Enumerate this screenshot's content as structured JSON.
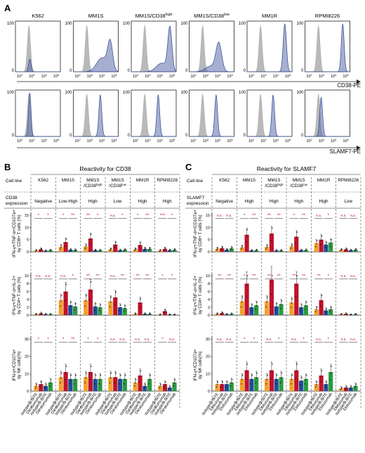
{
  "panel_A": {
    "letter": "A",
    "cell_lines": [
      "K562",
      "MM1S",
      "MM1S/CD38^high",
      "MM1S/CD38^low",
      "MM1R",
      "RPMI8226"
    ],
    "y_tick": "100",
    "y_tick_zero": "0",
    "x_ticks": [
      "10^2",
      "10^3",
      "10^4",
      "10^5"
    ],
    "row_labels": [
      "CD38-PE",
      "SLAMF7-PE"
    ],
    "histograms": {
      "cd38": [
        {
          "iso": 0.3,
          "stain": 0.32,
          "stain_width": 0.06,
          "stain_height": 0.25,
          "tail": 0
        },
        {
          "iso": 0.3,
          "stain": 0.82,
          "stain_width": 0.12,
          "stain_height": 0.55,
          "tail": 0.5
        },
        {
          "iso": 0.3,
          "stain": 0.86,
          "stain_width": 0.1,
          "stain_height": 0.85,
          "tail": 0.2
        },
        {
          "iso": 0.3,
          "stain": 0.66,
          "stain_width": 0.14,
          "stain_height": 0.55,
          "tail": 0.2
        },
        {
          "iso": 0.3,
          "stain": 0.84,
          "stain_width": 0.08,
          "stain_height": 0.95,
          "tail": 0
        },
        {
          "iso": 0.3,
          "stain": 0.84,
          "stain_width": 0.07,
          "stain_height": 0.95,
          "tail": 0
        }
      ],
      "slamf7": [
        {
          "iso": 0.3,
          "stain": 0.32,
          "stain_width": 0.06,
          "stain_height": 0.95,
          "tail": 0
        },
        {
          "iso": 0.3,
          "stain": 0.6,
          "stain_width": 0.07,
          "stain_height": 0.9,
          "tail": 0
        },
        {
          "iso": 0.3,
          "stain": 0.6,
          "stain_width": 0.07,
          "stain_height": 0.9,
          "tail": 0
        },
        {
          "iso": 0.3,
          "stain": 0.6,
          "stain_width": 0.07,
          "stain_height": 0.9,
          "tail": 0
        },
        {
          "iso": 0.3,
          "stain": 0.58,
          "stain_width": 0.07,
          "stain_height": 0.9,
          "tail": 0
        },
        {
          "iso": 0.3,
          "stain": 0.36,
          "stain_width": 0.07,
          "stain_height": 0.85,
          "tail": 0
        }
      ]
    }
  },
  "panel_B": {
    "letter": "B",
    "title": "Reactivity for CD38",
    "header_cell_line": "Cell line",
    "header_expression": "CD38 expression",
    "cell_lines": [
      "K562",
      "MM1S",
      "MM1S /CD38^high",
      "MM1S /CD38^low",
      "MM1R",
      "RPMI8226"
    ],
    "expression": [
      "Negative",
      "Low-High",
      "High",
      "Low",
      "High",
      "High"
    ],
    "y_labels": [
      "IFN-γ+/TNF-α+/CD107a+ by CD8+ T cells (%)",
      "IFN-γ+/TNF-α+/IL-2+ by CD4+ T cells (%)",
      "IFN-γ+/CD107a+ by NK cells(%)"
    ],
    "y_ticks": [
      [
        "0",
        "5",
        "10",
        "15"
      ],
      [
        "0",
        "2",
        "4",
        "6",
        "8",
        "10"
      ],
      [
        "0",
        "10",
        "20",
        "30"
      ]
    ],
    "significance": [
      [
        "*",
        "*",
        "*",
        "**",
        "**",
        "*",
        "n.s.",
        "*",
        "*",
        "**",
        "***",
        "*"
      ],
      [
        "n.s.",
        "n.s.",
        "n.s.",
        "*",
        "**",
        "**",
        "n.s.",
        "**",
        "**",
        "**",
        "*",
        "*"
      ],
      [
        "*",
        "*",
        "*",
        "**",
        "*",
        "*",
        "n.s.",
        "n.s.",
        "n.s.",
        "n.s.",
        "*",
        "n.s."
      ]
    ],
    "x_categories": [
      "Isotype/B-BiTE",
      "Daratumumab",
      "Isotype/B-BiTE",
      "Daratumumab"
    ]
  },
  "panel_C": {
    "letter": "C",
    "title": "Reactivity for SLAMF7",
    "header_cell_line": "Cell line",
    "header_expression": "SLAMF7 expression",
    "cell_lines": [
      "K562",
      "MM1S",
      "MM1S /CD38^high",
      "MM1S /CD38^low",
      "MM1R",
      "RPMI8226"
    ],
    "expression": [
      "Negative",
      "High",
      "High",
      "High",
      "High",
      "Low"
    ],
    "y_labels": [
      "IFN-γ+/TNF-α+/CD107a+ by CD8+ T cells (%)",
      "IFN-γ+/TNF-α+/IL-2+ by CD4+ T cells (%)",
      "IFN-γ+/CD107a+ by NK cells(%)"
    ],
    "y_ticks": [
      [
        "0",
        "5",
        "10",
        "15"
      ],
      [
        "0",
        "2",
        "4",
        "6",
        "8",
        "10"
      ],
      [
        "0",
        "10",
        "20",
        "30"
      ]
    ],
    "significance": [
      [
        "n.s.",
        "n.s.",
        "*",
        "**",
        "**",
        "**",
        "*",
        "**",
        "n.s.",
        "*",
        "n.s.",
        "n.s."
      ],
      [
        "**",
        "**",
        "*",
        "**",
        "**",
        "**",
        "**",
        "**",
        "**",
        "*",
        "n.s.",
        "n.s."
      ],
      [
        "n.s.",
        "n.s.",
        "*",
        "*",
        "n.s.",
        "*",
        "n.s.",
        "*",
        "n.s.",
        "*",
        "n.s.",
        "n.s."
      ]
    ],
    "x_categories": [
      "Isotype/B-BiTE",
      "Elotuzumab",
      "Isotype/B-BiTE",
      "Elotuzumab"
    ]
  },
  "chart_data": [
    {
      "type": "bar",
      "title": "Reactivity for CD38 — CD8+ T cells",
      "ylabel": "IFN-γ+/TNF-α+/CD107a+ by CD8+ T cells (%)",
      "categories": [
        "K562",
        "MM1S",
        "MM1S/CD38high",
        "MM1S/CD38low",
        "MM1R",
        "RPMI8226"
      ],
      "ylim": [
        0,
        15
      ],
      "series": [
        {
          "name": "Isotype/B-BiTE",
          "color": "#f2a12d",
          "values": [
            0.5,
            2.0,
            2.2,
            1.0,
            1.0,
            0.5
          ]
        },
        {
          "name": "Daratumumab",
          "color": "#c0132b",
          "values": [
            1.0,
            4.0,
            5.5,
            3.0,
            2.8,
            1.2
          ]
        },
        {
          "name": "Isotype/B-BiTE",
          "color": "#1f4f9a",
          "values": [
            0.4,
            0.8,
            0.6,
            0.6,
            1.2,
            0.6
          ]
        },
        {
          "name": "Daratumumab",
          "color": "#2b9a3f",
          "values": [
            0.6,
            0.7,
            0.6,
            0.8,
            1.2,
            0.8
          ]
        }
      ]
    },
    {
      "type": "bar",
      "title": "Reactivity for CD38 — CD4+ T cells",
      "ylabel": "IFN-γ+/TNF-α+/IL-2+ by CD4+ T cells (%)",
      "categories": [
        "K562",
        "MM1S",
        "MM1S/CD38high",
        "MM1S/CD38low",
        "MM1R",
        "RPMI8226"
      ],
      "ylim": [
        0,
        10
      ],
      "series": [
        {
          "name": "Isotype/B-BiTE",
          "color": "#f2a12d",
          "values": [
            0.2,
            3.8,
            3.8,
            3.5,
            0.3,
            0.1
          ]
        },
        {
          "name": "Daratumumab",
          "color": "#c0132b",
          "values": [
            0.4,
            6.0,
            6.5,
            4.5,
            3.2,
            1.0
          ]
        },
        {
          "name": "Isotype/B-BiTE",
          "color": "#1f4f9a",
          "values": [
            0.2,
            2.5,
            2.2,
            2.0,
            0.3,
            0.1
          ]
        },
        {
          "name": "Daratumumab",
          "color": "#2b9a3f",
          "values": [
            0.2,
            2.2,
            2.0,
            1.8,
            0.3,
            0.1
          ]
        }
      ]
    },
    {
      "type": "bar",
      "title": "Reactivity for CD38 — NK cells",
      "ylabel": "IFN-γ+/CD107a+ by NK cells(%)",
      "categories": [
        "K562",
        "MM1S",
        "MM1S/CD38high",
        "MM1S/CD38low",
        "MM1R",
        "RPMI8226"
      ],
      "ylim": [
        0,
        30
      ],
      "series": [
        {
          "name": "Isotype/B-BiTE",
          "color": "#f2a12d",
          "values": [
            3,
            8,
            8,
            8,
            5,
            3
          ]
        },
        {
          "name": "Daratumumab",
          "color": "#c0132b",
          "values": [
            4,
            11,
            11,
            8,
            9,
            4
          ]
        },
        {
          "name": "Isotype/B-BiTE",
          "color": "#1f4f9a",
          "values": [
            3,
            7,
            7,
            7,
            3,
            2
          ]
        },
        {
          "name": "Daratumumab",
          "color": "#2b9a3f",
          "values": [
            5,
            7,
            7,
            7,
            7,
            5
          ]
        }
      ]
    },
    {
      "type": "bar",
      "title": "Reactivity for SLAMF7 — CD8+ T cells",
      "ylabel": "IFN-γ+/TNF-α+/CD107a+ by CD8+ T cells (%)",
      "categories": [
        "K562",
        "MM1S",
        "MM1S/CD38high",
        "MM1S/CD38low",
        "MM1R",
        "RPMI8226"
      ],
      "ylim": [
        0,
        15
      ],
      "series": [
        {
          "name": "Isotype/B-BiTE",
          "color": "#f2a12d",
          "values": [
            1.2,
            1.8,
            2.0,
            2.2,
            3.5,
            0.8
          ]
        },
        {
          "name": "Elotuzumab",
          "color": "#c0132b",
          "values": [
            1.5,
            7.0,
            7.5,
            6.2,
            5.0,
            1.0
          ]
        },
        {
          "name": "Isotype/B-BiTE",
          "color": "#1f4f9a",
          "values": [
            0.8,
            0.5,
            0.5,
            0.6,
            3.0,
            0.6
          ]
        },
        {
          "name": "Elotuzumab",
          "color": "#2b9a3f",
          "values": [
            1.4,
            0.6,
            0.5,
            0.7,
            3.8,
            0.8
          ]
        }
      ]
    },
    {
      "type": "bar",
      "title": "Reactivity for SLAMF7 — CD4+ T cells",
      "ylabel": "IFN-γ+/TNF-α+/IL-2+ by CD4+ T cells (%)",
      "categories": [
        "K562",
        "MM1S",
        "MM1S/CD38high",
        "MM1S/CD38low",
        "MM1R",
        "RPMI8226"
      ],
      "ylim": [
        0,
        10
      ],
      "series": [
        {
          "name": "Isotype/B-BiTE",
          "color": "#f2a12d",
          "values": [
            0.3,
            3.5,
            3.5,
            3.2,
            1.5,
            0.2
          ]
        },
        {
          "name": "Elotuzumab",
          "color": "#c0132b",
          "values": [
            0.5,
            8.0,
            9.0,
            8.0,
            3.8,
            0.3
          ]
        },
        {
          "name": "Isotype/B-BiTE",
          "color": "#1f4f9a",
          "values": [
            0.2,
            2.0,
            2.2,
            2.0,
            1.2,
            0.1
          ]
        },
        {
          "name": "Elotuzumab",
          "color": "#2b9a3f",
          "values": [
            0.3,
            2.5,
            2.8,
            2.5,
            1.5,
            0.2
          ]
        }
      ]
    },
    {
      "type": "bar",
      "title": "Reactivity for SLAMF7 — NK cells",
      "ylabel": "IFN-γ+/CD107a+ by NK cells(%)",
      "categories": [
        "K562",
        "MM1S",
        "MM1S/CD38high",
        "MM1S/CD38low",
        "MM1R",
        "RPMI8226"
      ],
      "ylim": [
        0,
        30
      ],
      "series": [
        {
          "name": "Isotype/B-BiTE",
          "color": "#f2a12d",
          "values": [
            4,
            7,
            7,
            7,
            4,
            1.5
          ]
        },
        {
          "name": "Elotuzumab",
          "color": "#c0132b",
          "values": [
            4,
            12,
            12,
            12,
            9,
            2
          ]
        },
        {
          "name": "Isotype/B-BiTE",
          "color": "#1f4f9a",
          "values": [
            4,
            7,
            7,
            6,
            4,
            2
          ]
        },
        {
          "name": "Elotuzumab",
          "color": "#2b9a3f",
          "values": [
            5,
            8,
            8,
            7,
            11,
            3
          ]
        }
      ]
    }
  ]
}
